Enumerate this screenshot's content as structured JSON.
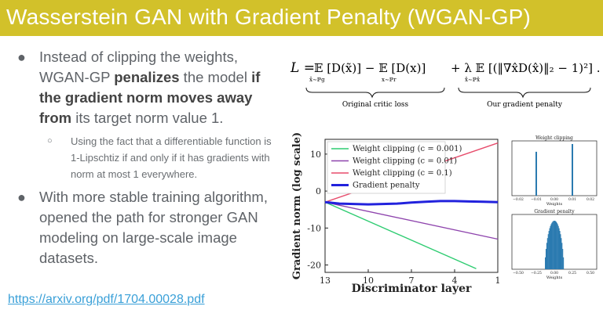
{
  "slide": {
    "title": "Wasserstein GAN with Gradient Penalty (WGAN-GP)",
    "bullets": {
      "b1_part1": "Instead of clipping the weights, WGAN-GP ",
      "b1_bold1": "penalizes",
      "b1_part2": " the model ",
      "b1_bold2": "if the gradient norm moves away from",
      "b1_part3": " its target norm value 1.",
      "sub1": "Using the fact that a differentiable function is 1-Lipschtiz if and only if it has gradients with norm at most 1 everywhere.",
      "b2": "With more stable training algorithm, opened the path for stronger GAN modeling on large-scale image datasets."
    },
    "link": "https://arxiv.org/pdf/1704.00028.pdf",
    "bullet_glyph": "●",
    "sub_glyph": "○"
  },
  "formula": {
    "lhs": "L =",
    "term1": "𝔼 [D(x̃)] − 𝔼 [D(x)]",
    "term1_sub1": "x̃∼ℙg",
    "term1_sub2": "x∼ℙr",
    "term2": "+ λ 𝔼 [(‖∇x̂D(x̂)‖₂ − 1)²] .",
    "term2_sub": "x̂∼ℙx̂",
    "label1": "Original critic loss",
    "label2": "Our gradient penalty"
  },
  "chart_data": [
    {
      "type": "line",
      "xlabel": "Discriminator layer",
      "ylabel": "Gradient norm (log scale)",
      "x": [
        13,
        10,
        7,
        4,
        1
      ],
      "xlim": [
        13,
        1
      ],
      "ylim": [
        -22,
        14
      ],
      "yticks": [
        10,
        0,
        -10,
        -20
      ],
      "legend_position": "top-left",
      "series": [
        {
          "name": "Weight clipping (c = 0.001)",
          "color": "#2ecc71",
          "x": [
            13,
            2.5
          ],
          "y": [
            -3,
            -21
          ]
        },
        {
          "name": "Weight clipping (c = 0.01)",
          "color": "#8e44ad",
          "x": [
            13,
            1
          ],
          "y": [
            -3,
            -13
          ]
        },
        {
          "name": "Weight clipping (c = 0.1)",
          "color": "#e74c6c",
          "x": [
            13,
            1
          ],
          "y": [
            -3,
            13
          ]
        },
        {
          "name": "Gradient penalty",
          "color": "#2222dd",
          "x": [
            13,
            12,
            11,
            10,
            9,
            8,
            7,
            6,
            5,
            4,
            3,
            2,
            1
          ],
          "y": [
            -3,
            -3.4,
            -3.5,
            -3.6,
            -3.5,
            -3.4,
            -3.1,
            -2.9,
            -2.7,
            -2.7,
            -2.8,
            -2.9,
            -3
          ]
        }
      ]
    },
    {
      "type": "bar",
      "title": "Weight clipping",
      "xlabel": "Weights",
      "xticks": [
        "−0.02",
        "−0.01",
        "0.00",
        "0.01",
        "0.02"
      ],
      "values": [
        {
          "x": -0.01,
          "height": 0.85
        },
        {
          "x": 0.01,
          "height": 1.0
        }
      ]
    },
    {
      "type": "bar",
      "title": "Gradient penalty",
      "xlabel": "Weights",
      "xticks": [
        "−0.50",
        "−0.25",
        "0.00",
        "0.25",
        "0.50"
      ],
      "distribution": "bell",
      "range": [
        -0.13,
        0.13
      ]
    }
  ]
}
